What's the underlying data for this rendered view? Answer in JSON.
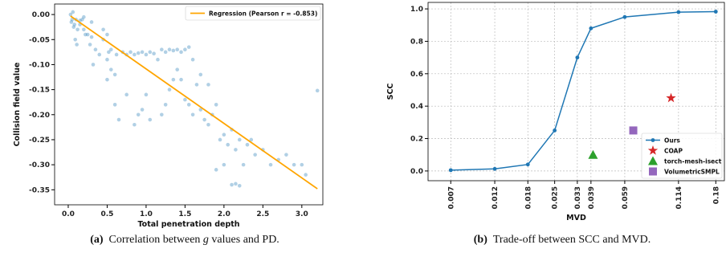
{
  "chart_data": [
    {
      "type": "scatter",
      "xlabel": "Total penetration depth",
      "ylabel": "Collision field value",
      "xlim": [
        -0.175,
        3.27
      ],
      "ylim": [
        -0.38,
        0.021
      ],
      "xticks": [
        {
          "value": 0,
          "label": "0.0"
        },
        {
          "value": 0.5,
          "label": "0.5"
        },
        {
          "value": 1,
          "label": "1.0"
        },
        {
          "value": 1.5,
          "label": "1.5"
        },
        {
          "value": 2,
          "label": "2.0"
        },
        {
          "value": 2.5,
          "label": "2.5"
        },
        {
          "value": 3,
          "label": "3.0"
        }
      ],
      "yticks": [
        {
          "value": 0,
          "label": "0.00"
        },
        {
          "value": -0.05,
          "label": "-0.05"
        },
        {
          "value": -0.1,
          "label": "-0.10"
        },
        {
          "value": -0.15,
          "label": "-0.15"
        },
        {
          "value": -0.2,
          "label": "-0.20"
        },
        {
          "value": -0.25,
          "label": "-0.25"
        },
        {
          "value": -0.3,
          "label": "-0.30"
        },
        {
          "value": -0.35,
          "label": "-0.35"
        }
      ],
      "grid": false,
      "legend": "upper right",
      "points": {
        "color": "#1f77b4",
        "x": [
          0.03,
          0.05,
          0.06,
          0.08,
          0.1,
          0.12,
          0.04,
          0.07,
          0.15,
          0.2,
          0.25,
          0.3,
          0.18,
          0.09,
          0.11,
          0.35,
          0.4,
          0.45,
          0.5,
          0.55,
          0.6,
          0.32,
          0.28,
          0.22,
          0.5,
          0.52,
          0.55,
          0.62,
          0.7,
          0.75,
          0.8,
          0.85,
          0.9,
          0.95,
          1.0,
          1.05,
          1.1,
          1.15,
          1.2,
          1.25,
          1.3,
          1.35,
          1.4,
          1.45,
          1.5,
          1.55,
          1.6,
          1.0,
          0.9,
          0.6,
          0.65,
          0.75,
          0.85,
          0.95,
          1.05,
          1.2,
          1.3,
          1.45,
          1.5,
          1.55,
          1.6,
          1.7,
          1.75,
          1.8,
          1.85,
          1.9,
          1.95,
          2.0,
          2.05,
          2.1,
          2.15,
          2.2,
          2.25,
          2.3,
          2.1,
          2.15,
          2.2,
          2.0,
          1.9,
          2.4,
          2.5,
          2.6,
          2.7,
          2.8,
          2.9,
          3.0,
          3.05,
          3.2,
          1.65,
          1.4,
          1.35,
          1.25,
          0.3,
          0.2,
          0.5,
          1.7,
          1.8,
          2.35,
          0.45,
          0.15
        ],
        "y": [
          0.0,
          -0.01,
          0.005,
          -0.02,
          -0.01,
          -0.03,
          -0.015,
          -0.025,
          -0.02,
          -0.03,
          -0.04,
          -0.045,
          -0.01,
          -0.05,
          -0.06,
          -0.07,
          -0.08,
          -0.05,
          -0.09,
          -0.11,
          -0.12,
          -0.1,
          -0.06,
          -0.04,
          -0.13,
          -0.075,
          -0.07,
          -0.08,
          -0.075,
          -0.08,
          -0.075,
          -0.08,
          -0.077,
          -0.075,
          -0.08,
          -0.075,
          -0.078,
          -0.09,
          -0.07,
          -0.075,
          -0.07,
          -0.072,
          -0.07,
          -0.075,
          -0.07,
          -0.065,
          -0.09,
          -0.16,
          -0.2,
          -0.18,
          -0.21,
          -0.16,
          -0.22,
          -0.19,
          -0.21,
          -0.2,
          -0.15,
          -0.13,
          -0.17,
          -0.18,
          -0.2,
          -0.19,
          -0.21,
          -0.22,
          -0.2,
          -0.18,
          -0.25,
          -0.24,
          -0.26,
          -0.23,
          -0.27,
          -0.25,
          -0.3,
          -0.26,
          -0.34,
          -0.338,
          -0.342,
          -0.3,
          -0.31,
          -0.28,
          -0.27,
          -0.3,
          -0.29,
          -0.28,
          -0.3,
          -0.3,
          -0.32,
          -0.152,
          -0.14,
          -0.11,
          -0.13,
          -0.18,
          -0.015,
          -0.005,
          -0.04,
          -0.12,
          -0.14,
          -0.25,
          -0.03,
          -0.012
        ]
      },
      "regression": {
        "name": "Regression (Pearson r = -0.853)",
        "color": "#ffa500",
        "x": [
          0.03,
          3.2
        ],
        "y": [
          -0.003,
          -0.348
        ]
      },
      "caption": {
        "label": "(a)",
        "parts": [
          "Correlation between ",
          "g",
          " values and PD."
        ]
      }
    },
    {
      "type": "line",
      "xlabel": "MVD",
      "ylabel": "SCC",
      "xscale": "log",
      "xlim": [
        0.0053,
        0.2
      ],
      "ylim": [
        -0.06,
        1.04
      ],
      "xticks": [
        0.007,
        0.012,
        0.018,
        0.025,
        0.033,
        0.039,
        0.059,
        0.114,
        0.18
      ],
      "yticks": [
        {
          "value": 0,
          "label": "0.0"
        },
        {
          "value": 0.2,
          "label": "0.2"
        },
        {
          "value": 0.4,
          "label": "0.4"
        },
        {
          "value": 0.6,
          "label": "0.6"
        },
        {
          "value": 0.8,
          "label": "0.8"
        },
        {
          "value": 1,
          "label": "1.0"
        }
      ],
      "grid": true,
      "legend": "lower right",
      "series": [
        {
          "name": "Ours",
          "color": "#1f77b4",
          "marker": "o",
          "line": true,
          "x": [
            0.007,
            0.012,
            0.018,
            0.025,
            0.033,
            0.039,
            0.059,
            0.114,
            0.18
          ],
          "values": [
            0.005,
            0.013,
            0.04,
            0.25,
            0.7,
            0.88,
            0.95,
            0.98,
            0.983
          ]
        },
        {
          "name": "COAP",
          "color": "#d62728",
          "marker": "*",
          "line": false,
          "x": [
            0.104
          ],
          "values": [
            0.45
          ]
        },
        {
          "name": "torch-mesh-isect",
          "color": "#2ca02c",
          "marker": "^",
          "line": false,
          "x": [
            0.04
          ],
          "values": [
            0.1
          ]
        },
        {
          "name": "VolumetricSMPL",
          "color": "#9467bd",
          "marker": "s",
          "line": false,
          "x": [
            0.0655
          ],
          "values": [
            0.25
          ]
        }
      ],
      "caption": {
        "label": "(b)",
        "parts": [
          "Trade-off between SCC and MVD."
        ]
      }
    }
  ]
}
